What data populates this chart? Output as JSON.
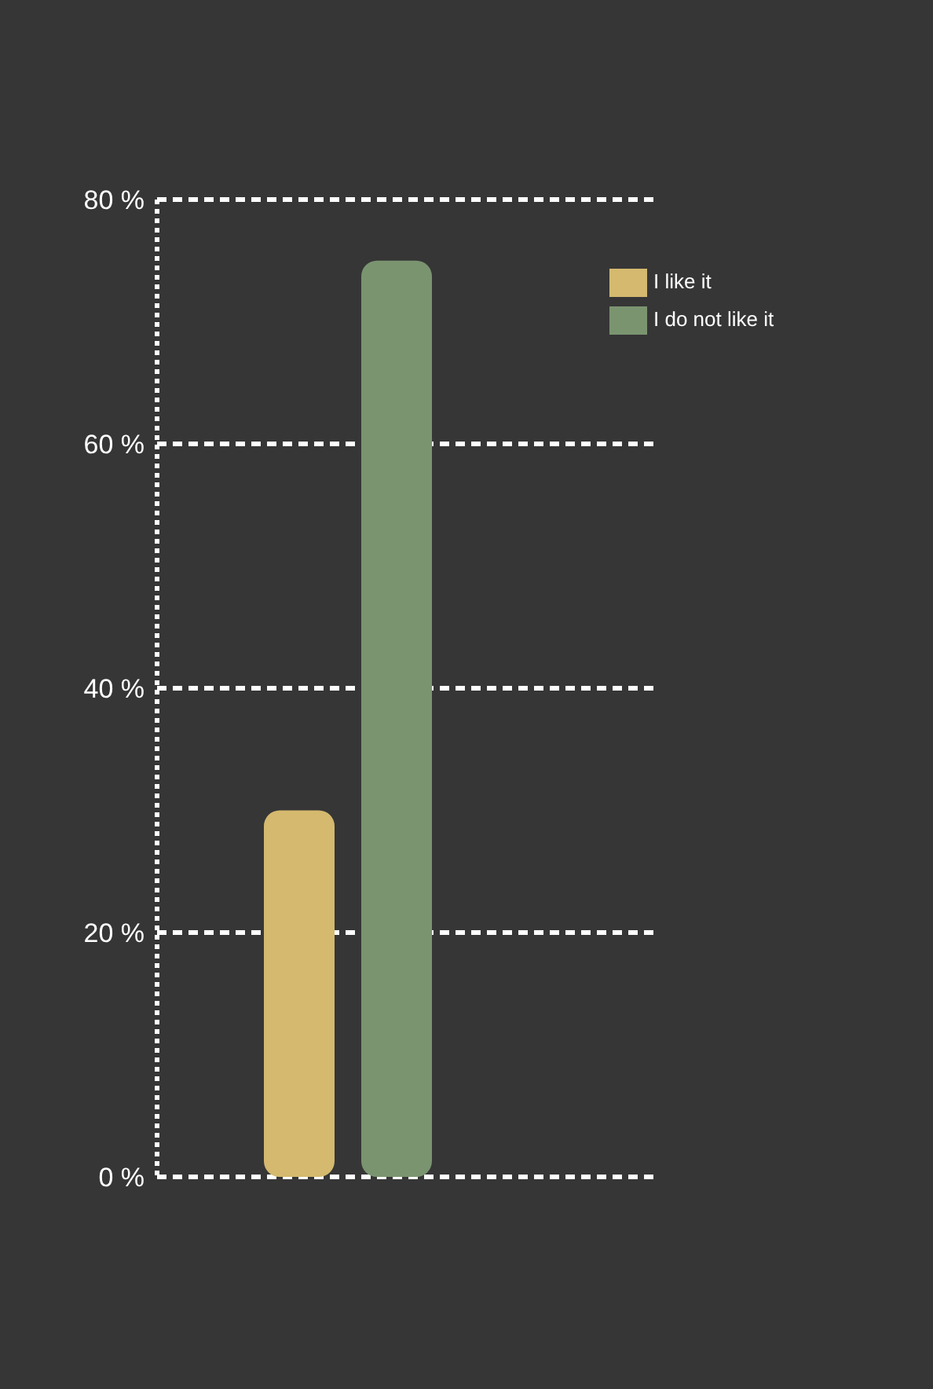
{
  "chart_data": {
    "type": "bar",
    "categories": [
      null
    ],
    "series": [
      {
        "name": "I like it",
        "color": "#d4b96e",
        "values": [
          30
        ]
      },
      {
        "name": "I do not like it",
        "color": "#7a9470",
        "values": [
          75
        ]
      }
    ],
    "ylim": [
      0,
      80
    ],
    "yticks": [
      {
        "value": 0,
        "label": "0 %"
      },
      {
        "value": 20,
        "label": "20 %"
      },
      {
        "value": 40,
        "label": "40 %"
      },
      {
        "value": 60,
        "label": "60 %"
      },
      {
        "value": 80,
        "label": "80 %"
      }
    ],
    "grid": "y",
    "legend": "top right"
  }
}
